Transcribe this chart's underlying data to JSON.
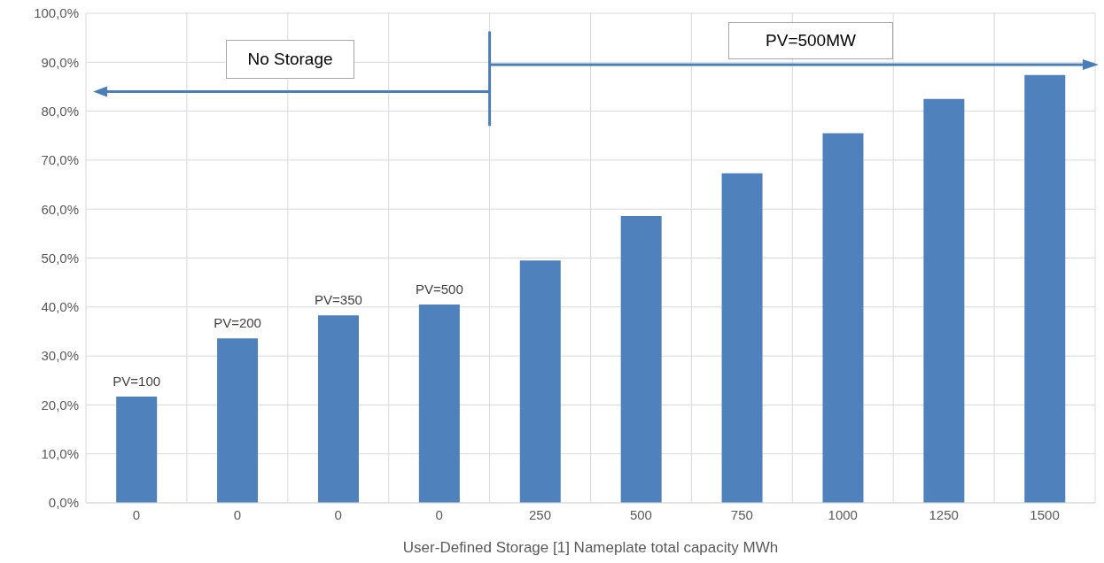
{
  "chart_data": {
    "type": "bar",
    "xlabel": "User-Defined Storage [1] Nameplate total capacity MWh",
    "categories": [
      "0",
      "0",
      "0",
      "0",
      "250",
      "500",
      "750",
      "1000",
      "1250",
      "1500"
    ],
    "values": [
      21.7,
      33.6,
      38.3,
      40.5,
      49.5,
      58.6,
      67.3,
      75.5,
      82.5,
      87.4
    ],
    "color": "#4f81bd",
    "ylim": [
      0,
      100
    ],
    "yticks": [
      {
        "value": 0,
        "label": "0,0%"
      },
      {
        "value": 10,
        "label": "10,0%"
      },
      {
        "value": 20,
        "label": "20,0%"
      },
      {
        "value": 30,
        "label": "30,0%"
      },
      {
        "value": 40,
        "label": "40,0%"
      },
      {
        "value": 50,
        "label": "50,0%"
      },
      {
        "value": 60,
        "label": "60,0%"
      },
      {
        "value": 70,
        "label": "70,0%"
      },
      {
        "value": 80,
        "label": "80,0%"
      },
      {
        "value": 90,
        "label": "90,0%"
      },
      {
        "value": 100,
        "label": "100,0%"
      }
    ],
    "grid": true,
    "annotations": [
      "No Storage",
      "PV=500MW",
      {
        "text": "PV=100",
        "y": 21.7
      },
      {
        "text": "PV=200",
        "y": 33.6
      },
      {
        "text": "PV=350",
        "y": 38.3
      },
      {
        "text": "PV=500",
        "y": 40.5
      }
    ]
  }
}
